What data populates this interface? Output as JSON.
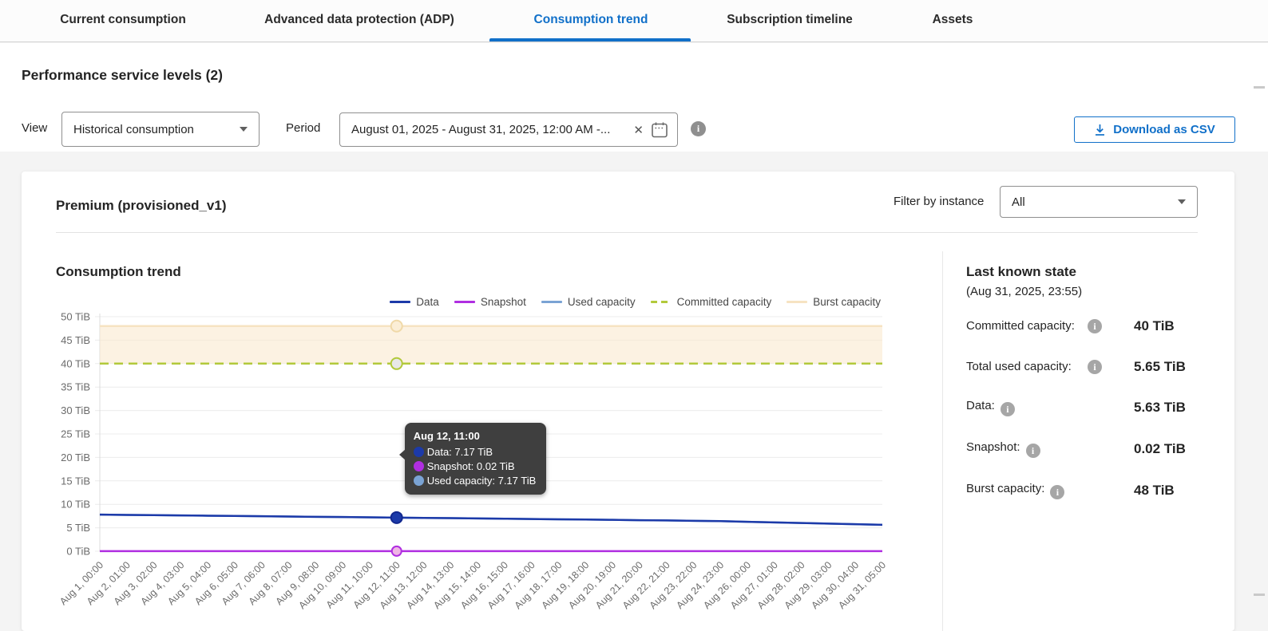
{
  "tabs": {
    "items": [
      {
        "label": "Current consumption",
        "active": false
      },
      {
        "label": "Advanced data protection (ADP)",
        "active": false
      },
      {
        "label": "Consumption trend",
        "active": true
      },
      {
        "label": "Subscription timeline",
        "active": false
      },
      {
        "label": "Assets",
        "active": false
      }
    ]
  },
  "page": {
    "title": "Performance service levels (2)"
  },
  "filters": {
    "view_label": "View",
    "view_value": "Historical consumption",
    "period_label": "Period",
    "period_value": "August 01, 2025 - August 31, 2025,  12:00 AM -...",
    "clear_icon": "✕",
    "download_label": "Download as CSV"
  },
  "card": {
    "title": "Premium (provisioned_v1)",
    "filter_by_instance_label": "Filter by instance",
    "instance_value": "All"
  },
  "chart_data": {
    "type": "line",
    "title": "Consumption trend",
    "y_unit": "TiB",
    "ylim": [
      0,
      50
    ],
    "ytick_step": 5,
    "grid": "horizontal",
    "legend_position": "top-right",
    "highlight_index": 11,
    "x": [
      "Aug 1, 00:00",
      "Aug 2, 01:00",
      "Aug 3, 02:00",
      "Aug 4, 03:00",
      "Aug 5, 04:00",
      "Aug 6, 05:00",
      "Aug 7, 06:00",
      "Aug 8, 07:00",
      "Aug 9, 08:00",
      "Aug 10, 09:00",
      "Aug 11, 10:00",
      "Aug 12, 11:00",
      "Aug 13, 12:00",
      "Aug 14, 13:00",
      "Aug 15, 14:00",
      "Aug 16, 15:00",
      "Aug 17, 16:00",
      "Aug 18, 17:00",
      "Aug 19, 18:00",
      "Aug 20, 19:00",
      "Aug 21, 20:00",
      "Aug 22, 21:00",
      "Aug 23, 22:00",
      "Aug 24, 23:00",
      "Aug 26, 00:00",
      "Aug 27, 01:00",
      "Aug 28, 02:00",
      "Aug 29, 03:00",
      "Aug 30, 04:00",
      "Aug 31, 05:00"
    ],
    "series": [
      {
        "name": "Data",
        "color": "#1c3aa9",
        "style": "solid",
        "z": 3,
        "values": [
          7.8,
          7.74,
          7.69,
          7.63,
          7.57,
          7.52,
          7.46,
          7.4,
          7.34,
          7.29,
          7.23,
          7.17,
          7.11,
          7.05,
          6.99,
          6.93,
          6.87,
          6.81,
          6.75,
          6.69,
          6.62,
          6.56,
          6.49,
          6.42,
          6.28,
          6.15,
          6.02,
          5.89,
          5.76,
          5.63
        ]
      },
      {
        "name": "Snapshot",
        "color": "#b02ee1",
        "style": "solid",
        "z": 4,
        "values": [
          0.02,
          0.02,
          0.02,
          0.02,
          0.02,
          0.02,
          0.02,
          0.02,
          0.02,
          0.02,
          0.02,
          0.02,
          0.02,
          0.02,
          0.02,
          0.02,
          0.02,
          0.02,
          0.02,
          0.02,
          0.02,
          0.02,
          0.02,
          0.02,
          0.02,
          0.02,
          0.02,
          0.02,
          0.02,
          0.02
        ]
      },
      {
        "name": "Used capacity",
        "color": "#7aa3d4",
        "style": "solid",
        "z": 2,
        "values": [
          7.8,
          7.74,
          7.69,
          7.63,
          7.57,
          7.52,
          7.46,
          7.4,
          7.34,
          7.29,
          7.23,
          7.17,
          7.11,
          7.05,
          6.99,
          6.93,
          6.87,
          6.81,
          6.75,
          6.69,
          6.62,
          6.56,
          6.49,
          6.42,
          6.28,
          6.15,
          6.02,
          5.89,
          5.76,
          5.63
        ]
      },
      {
        "name": "Committed capacity",
        "color": "#b2c93b",
        "style": "dashed",
        "z": 1,
        "values": [
          40,
          40,
          40,
          40,
          40,
          40,
          40,
          40,
          40,
          40,
          40,
          40,
          40,
          40,
          40,
          40,
          40,
          40,
          40,
          40,
          40,
          40,
          40,
          40,
          40,
          40,
          40,
          40,
          40,
          40
        ]
      },
      {
        "name": "Burst capacity",
        "color": "#f6e3c2",
        "style": "solid",
        "z": 0,
        "fill_to": 40,
        "fill_color": "rgba(250,233,206,0.6)",
        "values": [
          48,
          48,
          48,
          48,
          48,
          48,
          48,
          48,
          48,
          48,
          48,
          48,
          48,
          48,
          48,
          48,
          48,
          48,
          48,
          48,
          48,
          48,
          48,
          48,
          48,
          48,
          48,
          48,
          48,
          48
        ]
      }
    ],
    "highlight_markers": [
      {
        "series": "Burst capacity",
        "value": 48,
        "r": 7,
        "fill": "#fbeed6",
        "stroke": "#f0d9a8"
      },
      {
        "series": "Committed capacity",
        "value": 40,
        "r": 7,
        "fill": "#e8e8e8",
        "stroke": "#b2c93b"
      },
      {
        "series": "Data",
        "value": 7.17,
        "r": 7,
        "fill": "#1c3aa9",
        "stroke": "#12288f"
      },
      {
        "series": "Snapshot",
        "value": 0.02,
        "r": 6,
        "fill": "#efb5e5",
        "stroke": "#b02ee1"
      }
    ]
  },
  "tooltip": {
    "title": "Aug 12, 11:00",
    "rows": [
      {
        "label": "Data",
        "value": "7.17 TiB",
        "color": "#1c3aa9"
      },
      {
        "label": "Snapshot",
        "value": "0.02 TiB",
        "color": "#b02ee1"
      },
      {
        "label": "Used capacity",
        "value": "7.17 TiB",
        "color": "#7aa3d4"
      }
    ]
  },
  "last_known_state": {
    "title": "Last known state",
    "subtitle": "(Aug 31, 2025, 23:55)",
    "rows": [
      {
        "label": "Committed capacity:",
        "value": "40 TiB"
      },
      {
        "label": "Total used capacity:",
        "value": "5.65 TiB"
      },
      {
        "label": "Data:",
        "value": "5.63 TiB"
      },
      {
        "label": "Snapshot:",
        "value": "0.02 TiB"
      },
      {
        "label": "Burst capacity:",
        "value": "48 TiB"
      }
    ]
  },
  "colors": {
    "accent": "#1170c9",
    "tooltip_bg": "#3f3f3f",
    "burst_fill": "#faeace"
  }
}
